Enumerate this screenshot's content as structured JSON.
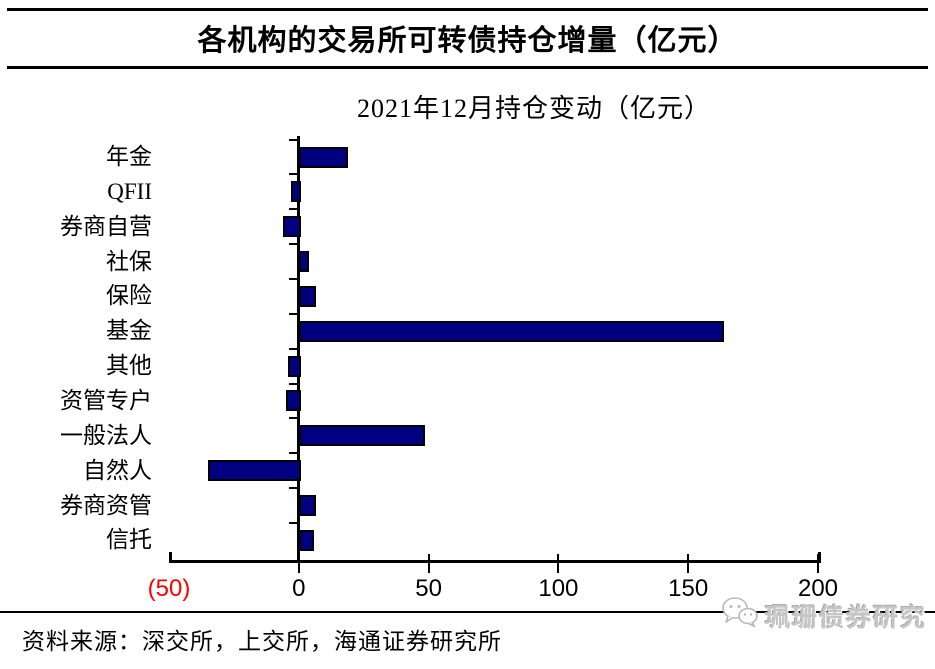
{
  "header": {
    "title": "各机构的交易所可转债持仓增量（亿元）"
  },
  "chart_data": {
    "type": "bar",
    "orientation": "horizontal",
    "title": "2021年12月持仓变动（亿元）",
    "categories": [
      "年金",
      "QFII",
      "券商自营",
      "社保",
      "保险",
      "基金",
      "其他",
      "资管专户",
      "一般法人",
      "自然人",
      "券商资管",
      "信托"
    ],
    "values": [
      18,
      -3,
      -6,
      3,
      6,
      163,
      -4,
      -5,
      48,
      -35,
      6,
      5
    ],
    "unit": "亿元",
    "xlim": [
      -50,
      200
    ],
    "xticks": [
      -50,
      0,
      50,
      100,
      150,
      200
    ],
    "xtick_labels": [
      "(50)",
      "0",
      "50",
      "100",
      "150",
      "200"
    ],
    "negative_tick_color": "#ff0000",
    "bar_color": "#000080",
    "bar_border_color": "#000000",
    "axis_color": "#000000",
    "grid": false,
    "legend": "none"
  },
  "footer": {
    "source": "资料来源：深交所，上交所，海通证券研究所",
    "watermark": "珮珊债券研究",
    "watermark_icon": "wechat-bubbles-icon"
  }
}
